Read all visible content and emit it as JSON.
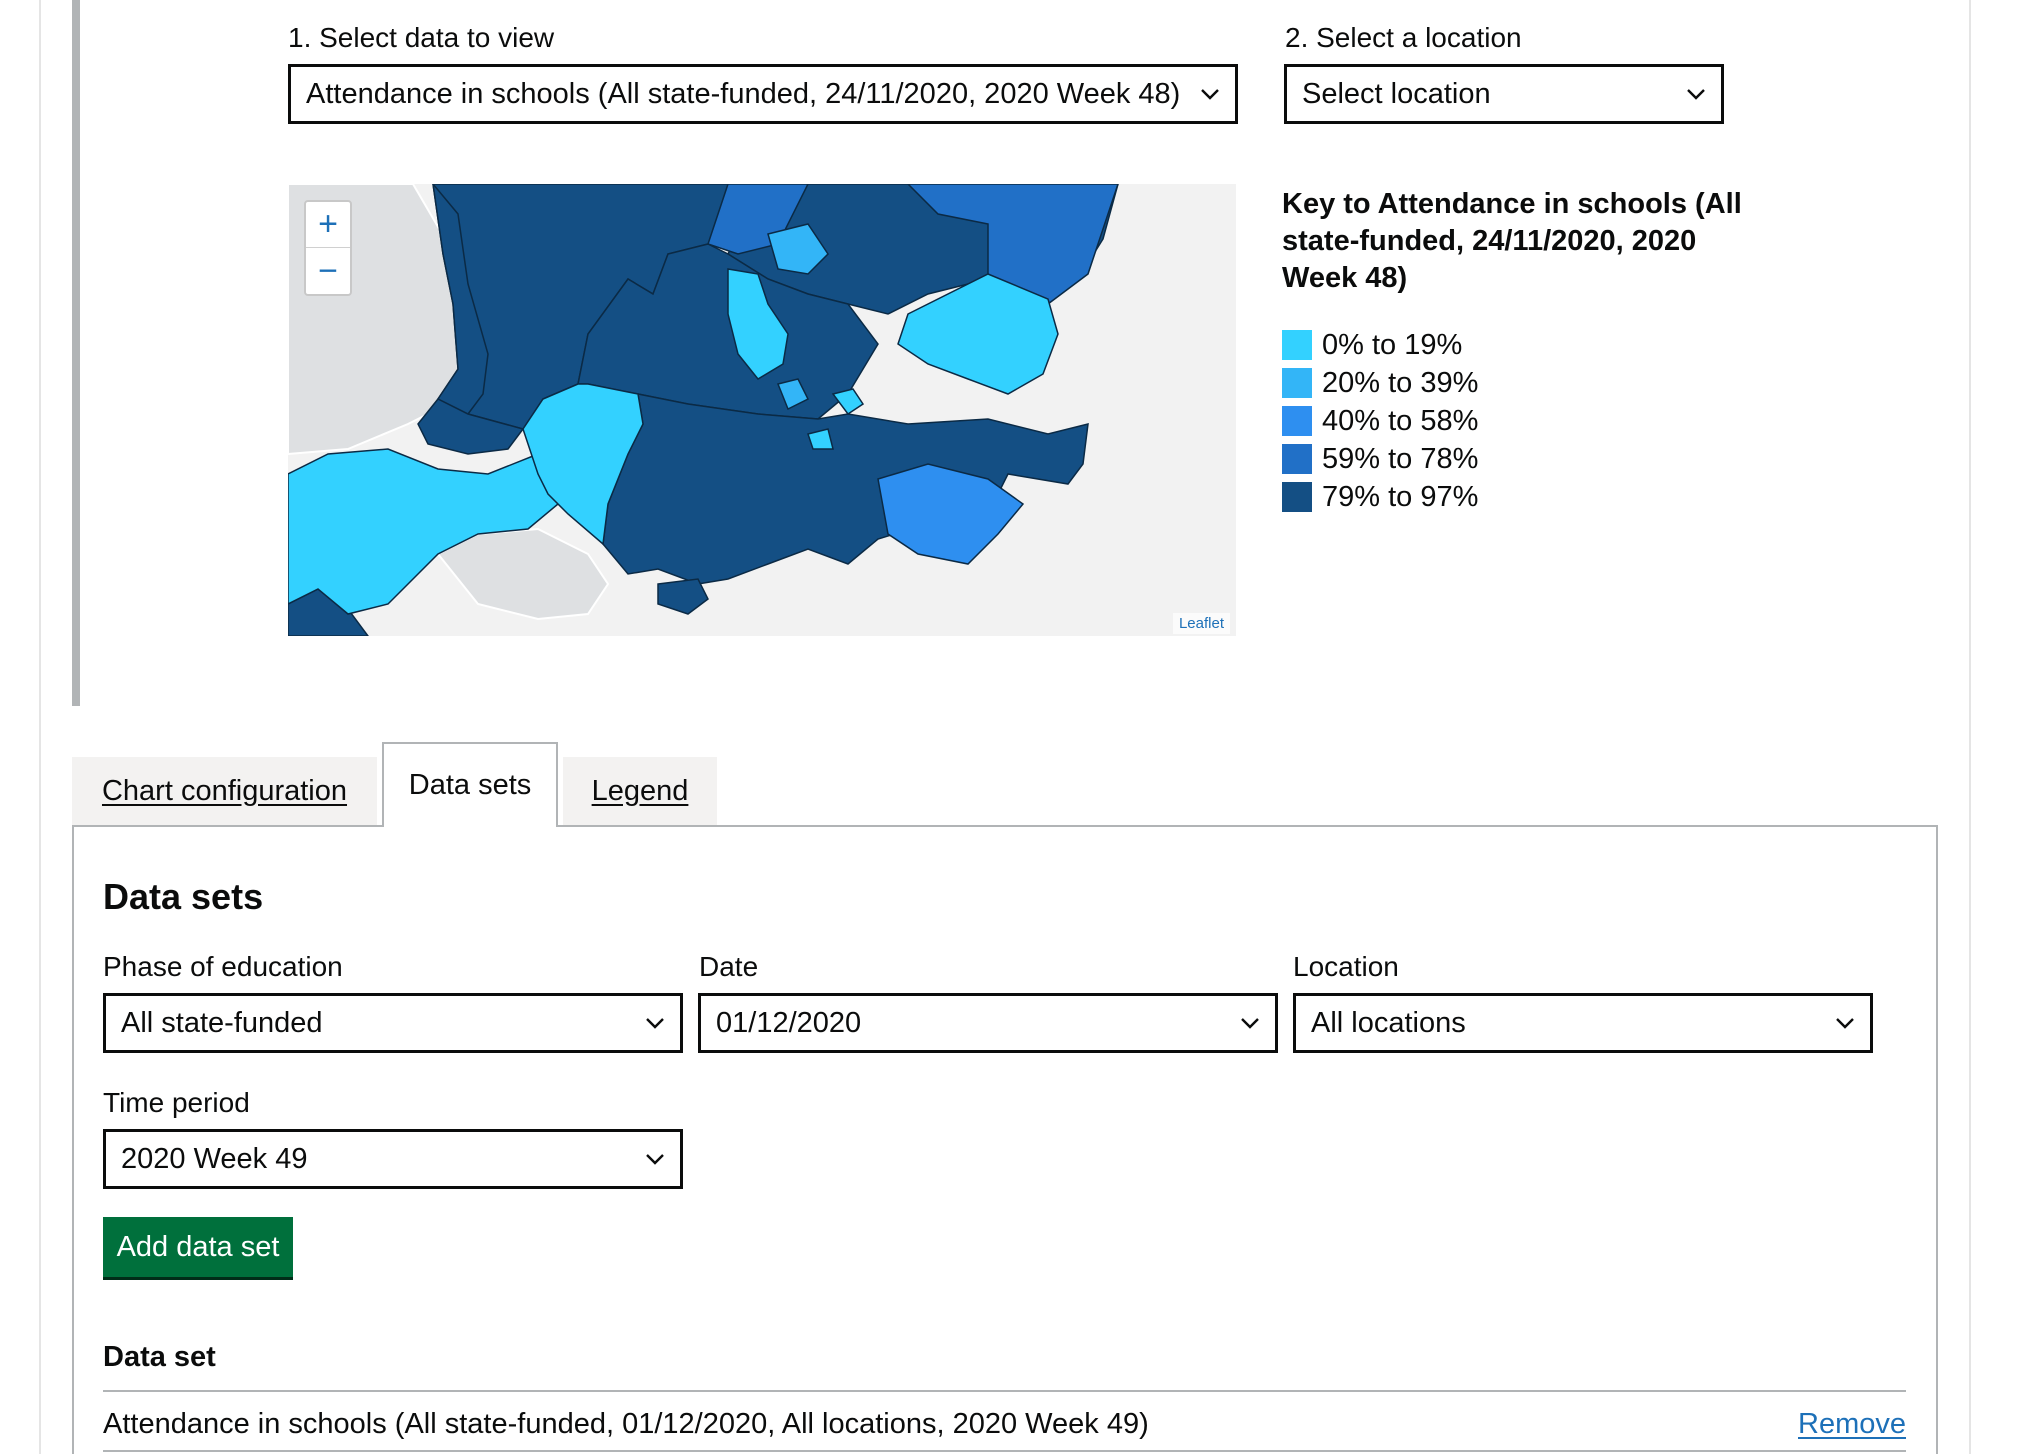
{
  "top": {
    "step1_label": "1. Select data to view",
    "step1_value": "Attendance in schools (All state-funded, 24/11/2020, 2020 Week 48)",
    "step2_label": "2. Select a location",
    "step2_value": "Select location"
  },
  "map": {
    "zoom_in": "+",
    "zoom_out": "−",
    "attribution": "Leaflet",
    "colors": {
      "land_outside": "#dee0e2",
      "sea": "#f2f2f2"
    }
  },
  "key": {
    "title": "Key to Attendance in schools (All state-funded, 24/11/2020, 2020 Week 48)",
    "items": [
      {
        "label": "0% to 19%",
        "color": "#33d1ff"
      },
      {
        "label": "20% to 39%",
        "color": "#33b5f7"
      },
      {
        "label": "40% to 58%",
        "color": "#2e8ff0"
      },
      {
        "label": "59% to 78%",
        "color": "#2170c7"
      },
      {
        "label": "79% to 97%",
        "color": "#144f84"
      }
    ]
  },
  "tabs": [
    {
      "label": "Chart configuration",
      "active": false
    },
    {
      "label": "Data sets",
      "active": true
    },
    {
      "label": "Legend",
      "active": false
    }
  ],
  "panel": {
    "heading": "Data sets",
    "filters": {
      "phase_label": "Phase of education",
      "phase_value": "All state-funded",
      "date_label": "Date",
      "date_value": "01/12/2020",
      "location_label": "Location",
      "location_value": "All locations",
      "time_label": "Time period",
      "time_value": "2020 Week 49"
    },
    "add_button": "Add data set",
    "list_heading": "Data set",
    "rows": [
      {
        "text": "Attendance in schools (All state-funded, 01/12/2020, All locations, 2020 Week 49)",
        "action": "Remove"
      }
    ]
  },
  "colors": {
    "button_green": "#00703c",
    "link_blue": "#1d70b8",
    "border_grey": "#b1b4b6"
  }
}
